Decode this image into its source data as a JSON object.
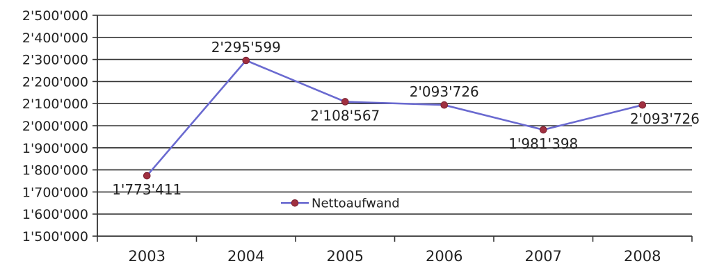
{
  "chart_data": {
    "type": "line",
    "title": "",
    "xlabel": "",
    "ylabel": "",
    "categories": [
      "2003",
      "2004",
      "2005",
      "2006",
      "2007",
      "2008"
    ],
    "series": [
      {
        "name": "Nettoaufwand",
        "values": [
          1773411,
          2295599,
          2108567,
          2093726,
          1981398,
          2093726
        ],
        "data_labels": [
          "1'773'411",
          "2'295'599",
          "2'108'567",
          "2'093'726",
          "1'981'398",
          "2'093'726"
        ],
        "color": "#6a6ad0",
        "marker_color": "#a03040"
      }
    ],
    "yticks": [
      1500000,
      1600000,
      1700000,
      1800000,
      1900000,
      2000000,
      2100000,
      2200000,
      2300000,
      2400000,
      2500000
    ],
    "ytick_labels": [
      "1'500'000",
      "1'600'000",
      "1'700'000",
      "1'800'000",
      "1'900'000",
      "2'000'000",
      "2'100'000",
      "2'200'000",
      "2'300'000",
      "2'400'000",
      "2'500'000"
    ],
    "ylim": [
      1500000,
      2500000
    ],
    "grid": true,
    "legend_position": "inside-center"
  }
}
